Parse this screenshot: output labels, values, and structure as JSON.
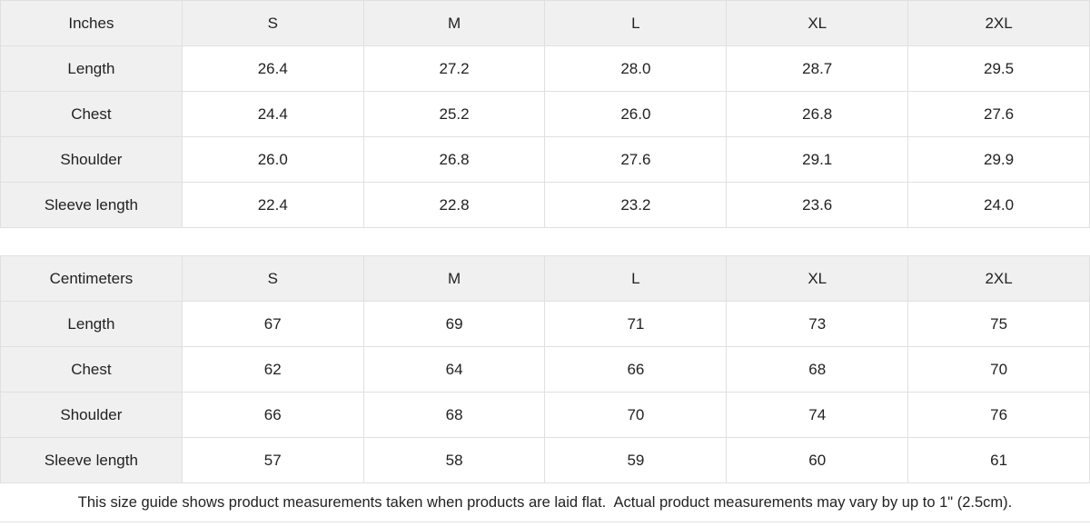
{
  "tables": [
    {
      "unit_label": "Inches",
      "sizes": [
        "S",
        "M",
        "L",
        "XL",
        "2XL"
      ],
      "rows": [
        {
          "label": "Length",
          "values": [
            "26.4",
            "27.2",
            "28.0",
            "28.7",
            "29.5"
          ]
        },
        {
          "label": "Chest",
          "values": [
            "24.4",
            "25.2",
            "26.0",
            "26.8",
            "27.6"
          ]
        },
        {
          "label": "Shoulder",
          "values": [
            "26.0",
            "26.8",
            "27.6",
            "29.1",
            "29.9"
          ]
        },
        {
          "label": "Sleeve length",
          "values": [
            "22.4",
            "22.8",
            "23.2",
            "23.6",
            "24.0"
          ]
        }
      ]
    },
    {
      "unit_label": "Centimeters",
      "sizes": [
        "S",
        "M",
        "L",
        "XL",
        "2XL"
      ],
      "rows": [
        {
          "label": "Length",
          "values": [
            "67",
            "69",
            "71",
            "73",
            "75"
          ]
        },
        {
          "label": "Chest",
          "values": [
            "62",
            "64",
            "66",
            "68",
            "70"
          ]
        },
        {
          "label": "Shoulder",
          "values": [
            "66",
            "68",
            "70",
            "74",
            "76"
          ]
        },
        {
          "label": "Sleeve length",
          "values": [
            "57",
            "58",
            "59",
            "60",
            "61"
          ]
        }
      ]
    }
  ],
  "footer": {
    "note": "This size guide shows product measurements taken when products are laid flat.  Actual product measurements may vary by up to 1\" (2.5cm)."
  },
  "colors": {
    "header_bg": "#f0f0f0",
    "border": "#e0e0e0",
    "text": "#222222"
  }
}
